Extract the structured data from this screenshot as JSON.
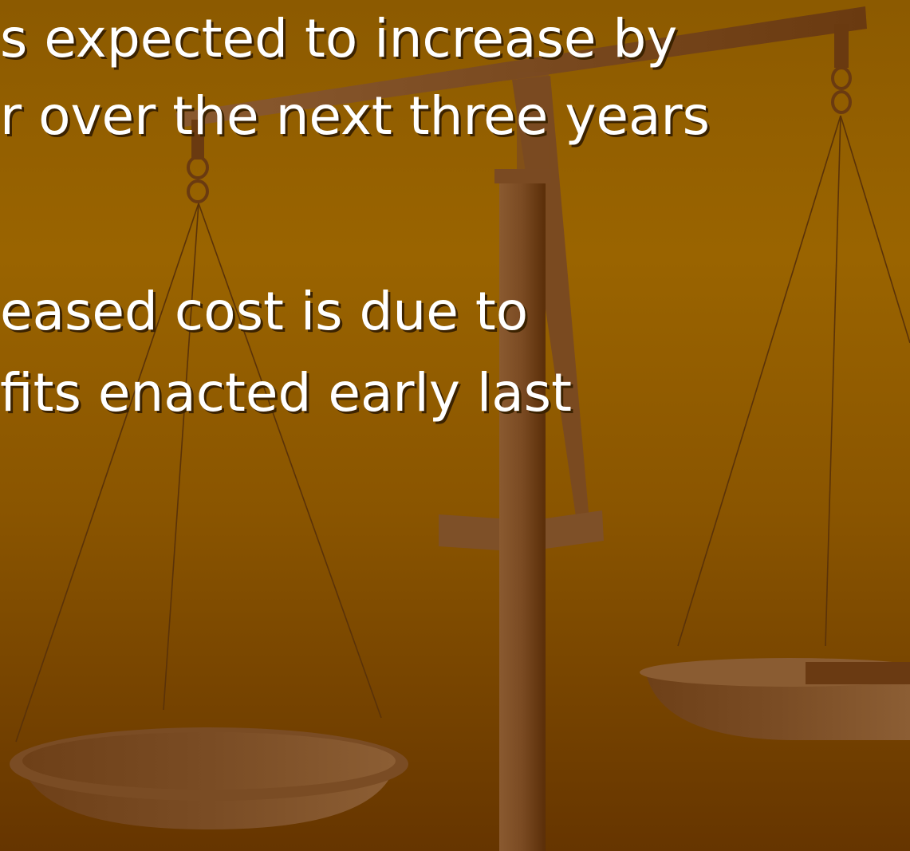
{
  "slide": {
    "bullets": [
      {
        "lines": [
          "s expected to increase by",
          "r over the next three years"
        ]
      },
      {
        "lines": [
          "eased cost is due to",
          "fits enacted early last"
        ]
      }
    ]
  }
}
